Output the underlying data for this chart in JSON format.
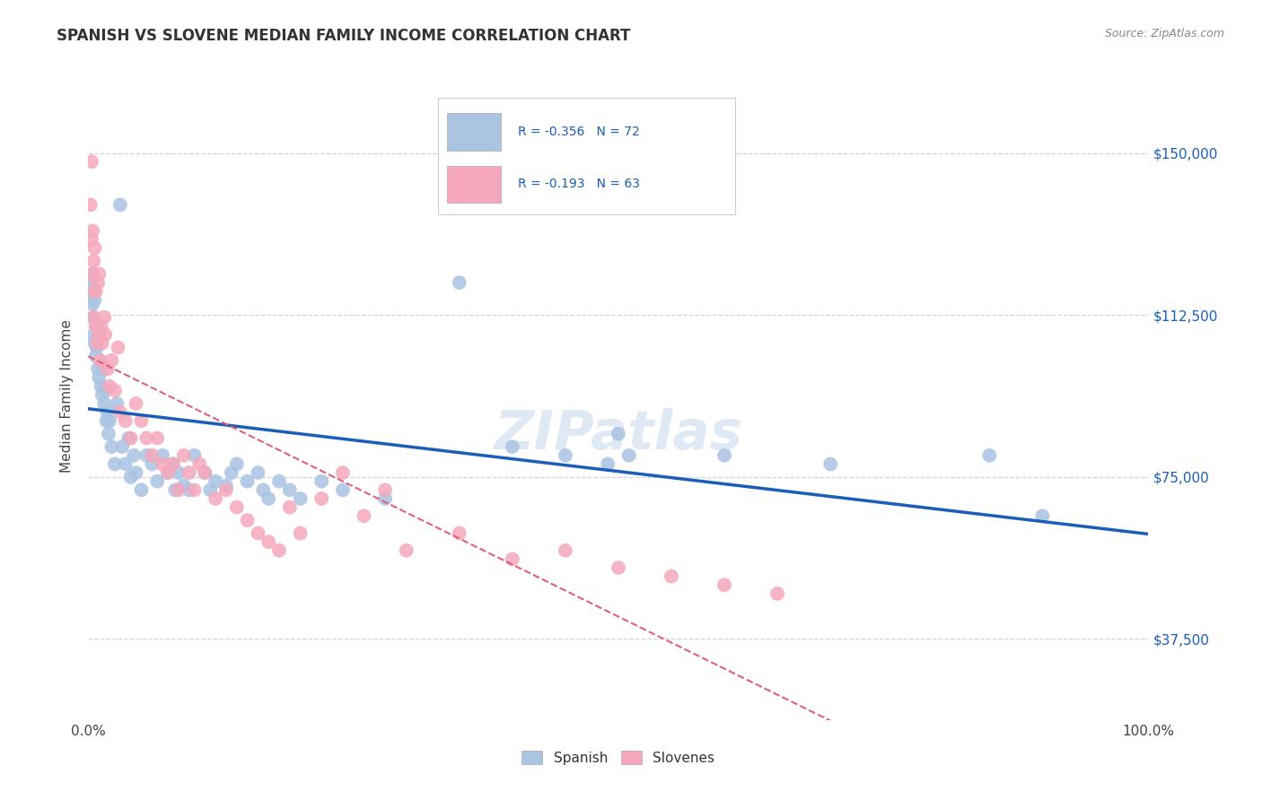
{
  "title": "SPANISH VS SLOVENE MEDIAN FAMILY INCOME CORRELATION CHART",
  "source": "Source: ZipAtlas.com",
  "ylabel": "Median Family Income",
  "xlim": [
    0,
    1.0
  ],
  "ylim": [
    18750,
    168750
  ],
  "yticks": [
    37500,
    75000,
    112500,
    150000
  ],
  "ytick_labels": [
    "$37,500",
    "$75,000",
    "$112,500",
    "$150,000"
  ],
  "xtick_labels": [
    "0.0%",
    "100.0%"
  ],
  "spanish_color": "#aac4e2",
  "slovene_color": "#f5a8bb",
  "spanish_line_color": "#1a5eb8",
  "slovene_line_color": "#e0607a",
  "background_color": "#ffffff",
  "grid_color": "#c8d4de",
  "R_spanish": -0.356,
  "N_spanish": 72,
  "R_slovene": -0.193,
  "N_slovene": 63,
  "spanish_x": [
    0.002,
    0.003,
    0.003,
    0.004,
    0.005,
    0.005,
    0.006,
    0.006,
    0.007,
    0.007,
    0.008,
    0.009,
    0.01,
    0.01,
    0.011,
    0.012,
    0.013,
    0.014,
    0.015,
    0.016,
    0.017,
    0.018,
    0.019,
    0.02,
    0.022,
    0.025,
    0.027,
    0.03,
    0.032,
    0.035,
    0.038,
    0.04,
    0.043,
    0.045,
    0.05,
    0.055,
    0.06,
    0.065,
    0.07,
    0.075,
    0.08,
    0.082,
    0.085,
    0.09,
    0.095,
    0.1,
    0.11,
    0.115,
    0.12,
    0.13,
    0.135,
    0.14,
    0.15,
    0.16,
    0.165,
    0.17,
    0.18,
    0.19,
    0.2,
    0.22,
    0.24,
    0.28,
    0.35,
    0.4,
    0.45,
    0.49,
    0.5,
    0.51,
    0.6,
    0.7,
    0.85,
    0.9
  ],
  "spanish_y": [
    120000,
    118000,
    122000,
    115000,
    112000,
    108000,
    116000,
    106000,
    110000,
    103000,
    105000,
    100000,
    108000,
    98000,
    102000,
    96000,
    94000,
    100000,
    92000,
    95000,
    88000,
    90000,
    85000,
    88000,
    82000,
    78000,
    92000,
    138000,
    82000,
    78000,
    84000,
    75000,
    80000,
    76000,
    72000,
    80000,
    78000,
    74000,
    80000,
    76000,
    78000,
    72000,
    76000,
    73000,
    72000,
    80000,
    76000,
    72000,
    74000,
    73000,
    76000,
    78000,
    74000,
    76000,
    72000,
    70000,
    74000,
    72000,
    70000,
    74000,
    72000,
    70000,
    120000,
    82000,
    80000,
    78000,
    85000,
    80000,
    80000,
    78000,
    80000,
    66000
  ],
  "slovene_x": [
    0.002,
    0.003,
    0.003,
    0.004,
    0.004,
    0.005,
    0.005,
    0.006,
    0.006,
    0.007,
    0.007,
    0.008,
    0.009,
    0.01,
    0.01,
    0.011,
    0.012,
    0.013,
    0.015,
    0.016,
    0.018,
    0.02,
    0.022,
    0.025,
    0.028,
    0.03,
    0.035,
    0.04,
    0.045,
    0.05,
    0.055,
    0.06,
    0.065,
    0.07,
    0.075,
    0.08,
    0.085,
    0.09,
    0.095,
    0.1,
    0.105,
    0.11,
    0.12,
    0.13,
    0.14,
    0.15,
    0.16,
    0.17,
    0.18,
    0.19,
    0.2,
    0.22,
    0.24,
    0.26,
    0.28,
    0.3,
    0.35,
    0.4,
    0.45,
    0.5,
    0.55,
    0.6,
    0.65
  ],
  "slovene_y": [
    138000,
    130000,
    148000,
    122000,
    132000,
    112000,
    125000,
    118000,
    128000,
    110000,
    118000,
    106000,
    120000,
    108000,
    122000,
    102000,
    110000,
    106000,
    112000,
    108000,
    100000,
    96000,
    102000,
    95000,
    105000,
    90000,
    88000,
    84000,
    92000,
    88000,
    84000,
    80000,
    84000,
    78000,
    76000,
    78000,
    72000,
    80000,
    76000,
    72000,
    78000,
    76000,
    70000,
    72000,
    68000,
    65000,
    62000,
    60000,
    58000,
    68000,
    62000,
    70000,
    76000,
    66000,
    72000,
    58000,
    62000,
    56000,
    58000,
    54000,
    52000,
    50000,
    48000
  ]
}
